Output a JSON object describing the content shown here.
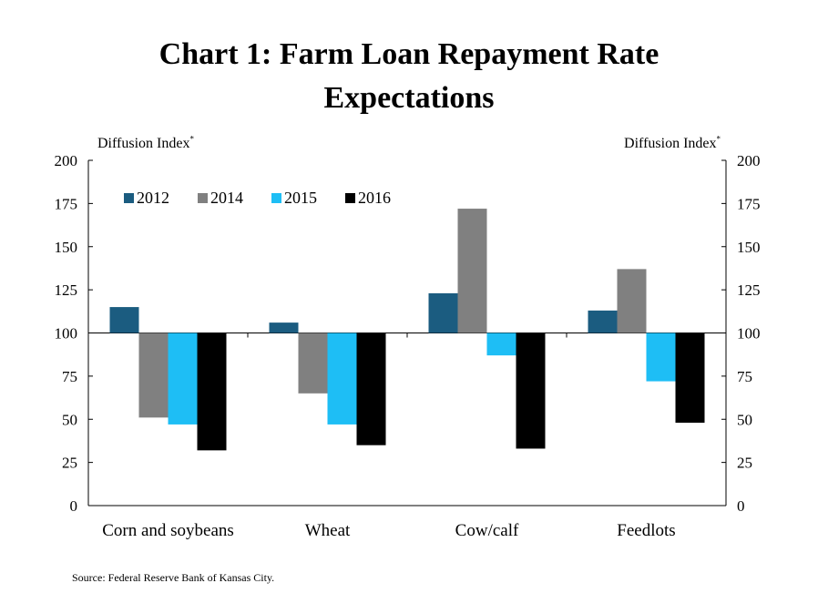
{
  "chart_data": {
    "type": "bar",
    "title_line1": "Chart 1: Farm Loan Repayment Rate",
    "title_line2": "Expectations",
    "ylabel_left": "Diffusion Index",
    "ylabel_right": "Diffusion Index",
    "ylabel_marker": "*",
    "ylim": [
      0,
      200
    ],
    "yticks": [
      "0",
      "25",
      "50",
      "75",
      "100",
      "125",
      "150",
      "175",
      "200"
    ],
    "baseline": 100,
    "legend_placement": "top-left",
    "categories": [
      "Corn and soybeans",
      "Wheat",
      "Cow/calf",
      "Feedlots"
    ],
    "series": [
      {
        "name": "2012",
        "color": "#1b5c80",
        "values": [
          115,
          106,
          123,
          113
        ]
      },
      {
        "name": "2014",
        "color": "#808080",
        "values": [
          51,
          65,
          172,
          137
        ]
      },
      {
        "name": "2015",
        "color": "#1ebef5",
        "values": [
          47,
          47,
          87,
          72
        ]
      },
      {
        "name": "2016",
        "color": "#000000",
        "values": [
          32,
          35,
          33,
          48
        ]
      }
    ],
    "source": "Source: Federal Reserve Bank of Kansas City."
  }
}
